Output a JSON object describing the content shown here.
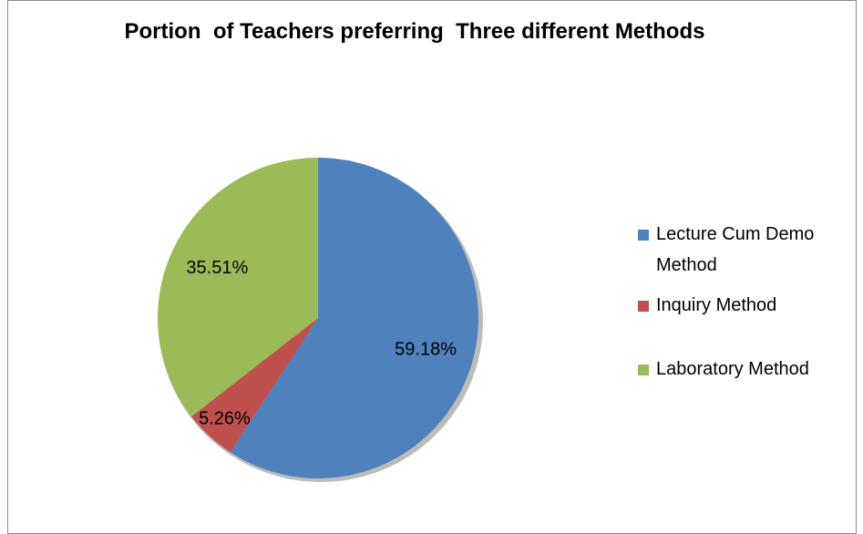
{
  "chart_data": {
    "type": "pie",
    "title": "Portion  of Teachers preferring  Three different Methods",
    "categories": [
      "Lecture Cum Demo Method",
      "Inquiry Method",
      "Laboratory Method"
    ],
    "values": [
      59.18,
      5.26,
      35.51
    ],
    "value_labels": [
      "59.18%",
      "5.26%",
      "35.51%"
    ],
    "colors": [
      "#4f81bd",
      "#c0504d",
      "#9bbb59"
    ],
    "legend": "right"
  }
}
